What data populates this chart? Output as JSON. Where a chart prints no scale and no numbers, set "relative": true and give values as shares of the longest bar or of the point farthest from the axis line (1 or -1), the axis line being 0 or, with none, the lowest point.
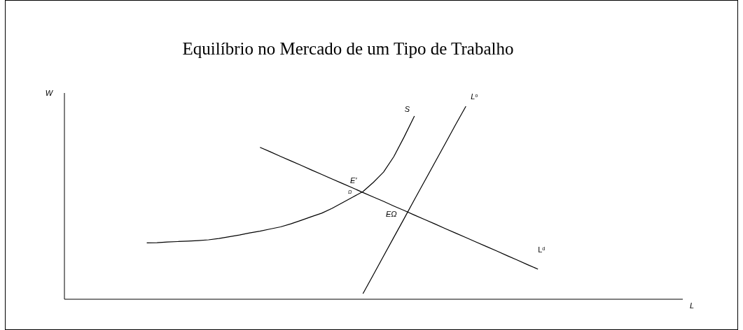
{
  "chart_data": {
    "type": "line",
    "title": "Equilíbrio no Mercado de um Tipo de Trabalho",
    "xlabel": "L",
    "ylabel": "W",
    "relative": true,
    "legend": false,
    "marker": "none",
    "line_style": "solid",
    "categories": [
      null,
      null,
      null,
      null,
      null,
      null,
      null,
      null,
      null,
      null,
      null,
      null,
      null,
      null,
      null,
      null,
      null,
      null,
      null,
      null,
      null,
      null,
      null,
      null,
      null,
      null,
      null,
      null,
      null,
      null,
      null,
      null,
      null,
      null,
      null,
      null,
      null,
      null,
      null,
      null,
      null,
      null,
      null,
      null,
      null,
      null,
      null,
      null,
      null,
      null,
      null,
      null,
      null,
      null,
      null,
      null,
      null,
      null,
      null,
      null,
      null
    ],
    "series": [
      {
        "name": "S",
        "color": "#000000",
        "values": [
          null,
          null,
          null,
          null,
          null,
          null,
          null,
          null,
          0.292,
          0.293,
          0.297,
          0.299,
          0.301,
          0.304,
          0.308,
          0.315,
          0.324,
          0.333,
          0.344,
          0.353,
          0.364,
          0.375,
          0.391,
          0.409,
          0.428,
          0.446,
          0.471,
          0.5,
          0.529,
          0.558,
          0.605,
          0.659,
          0.739,
          0.841,
          0.949,
          null,
          null,
          null,
          null,
          null,
          null,
          null,
          null,
          null,
          null,
          null,
          null,
          null,
          null,
          null,
          null,
          null,
          null,
          null,
          null,
          null,
          null,
          null,
          null,
          null,
          null
        ]
      },
      {
        "name": "L$^{o}$",
        "color": "#000000",
        "values": [
          null,
          null,
          null,
          null,
          null,
          null,
          null,
          null,
          null,
          null,
          null,
          null,
          null,
          null,
          null,
          null,
          null,
          null,
          null,
          null,
          null,
          null,
          null,
          null,
          null,
          null,
          null,
          null,
          null,
          0.029,
          0.126,
          0.224,
          0.321,
          0.418,
          0.516,
          0.613,
          0.71,
          0.807,
          0.905,
          1.0,
          null,
          null,
          null,
          null,
          null,
          null,
          null,
          null,
          null,
          null,
          null,
          null,
          null,
          null,
          null,
          null,
          null,
          null,
          null,
          null,
          null
        ]
      },
      {
        "name": "L$^{d}$",
        "color": "#000000",
        "values": [
          null,
          null,
          null,
          null,
          null,
          null,
          null,
          null,
          null,
          null,
          null,
          null,
          null,
          null,
          null,
          null,
          null,
          null,
          null,
          0.787,
          0.764,
          0.74,
          0.717,
          0.694,
          0.67,
          0.647,
          0.623,
          0.6,
          0.577,
          0.553,
          0.53,
          0.507,
          0.483,
          0.46,
          0.436,
          0.413,
          0.39,
          0.366,
          0.343,
          0.32,
          0.296,
          0.273,
          0.25,
          0.226,
          0.203,
          0.179,
          0.156,
          null,
          null,
          null,
          null,
          null,
          null,
          null,
          null,
          null,
          null,
          null,
          null,
          null,
          null
        ]
      }
    ],
    "annotations": [
      "E'",
      "Ω",
      "EΩ"
    ]
  }
}
